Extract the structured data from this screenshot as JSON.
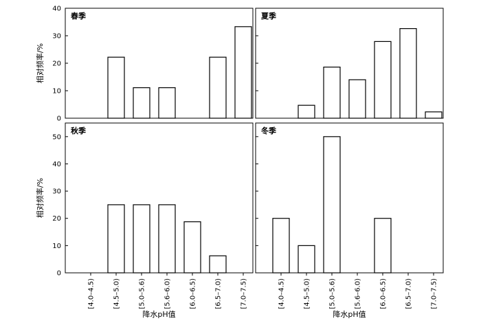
{
  "chart_data": {
    "type": "bar",
    "ylabel": "相对频率/%",
    "xlabel": "降水pH值",
    "categories": [
      "[4.0–4.5)",
      "[4.5–5.0)",
      "[5.0–5.6)",
      "[5.6–6.0)",
      "[6.0–6.5)",
      "[6.5–7.0)",
      "[7.0–7.5)"
    ],
    "bar_fill": "#ffffff",
    "bar_stroke": "#000000",
    "panels": [
      {
        "title": "春季",
        "ylim": [
          0,
          40
        ],
        "yticks": [
          0,
          10,
          20,
          30,
          40
        ],
        "values": [
          0,
          22.2,
          11.1,
          11.1,
          0,
          22.2,
          33.3
        ]
      },
      {
        "title": "夏季",
        "ylim": [
          0,
          40
        ],
        "yticks": [
          0,
          10,
          20,
          30,
          40
        ],
        "values": [
          0,
          4.7,
          18.6,
          14.0,
          27.9,
          32.6,
          2.3
        ]
      },
      {
        "title": "秋季",
        "ylim": [
          0,
          55
        ],
        "yticks": [
          0,
          10,
          20,
          30,
          40,
          50
        ],
        "values": [
          0,
          25,
          25,
          25,
          18.75,
          6.25,
          0
        ]
      },
      {
        "title": "冬季",
        "ylim": [
          0,
          55
        ],
        "yticks": [
          0,
          10,
          20,
          30,
          40,
          50
        ],
        "values": [
          20,
          10,
          50,
          0,
          20,
          0,
          0
        ]
      }
    ]
  }
}
